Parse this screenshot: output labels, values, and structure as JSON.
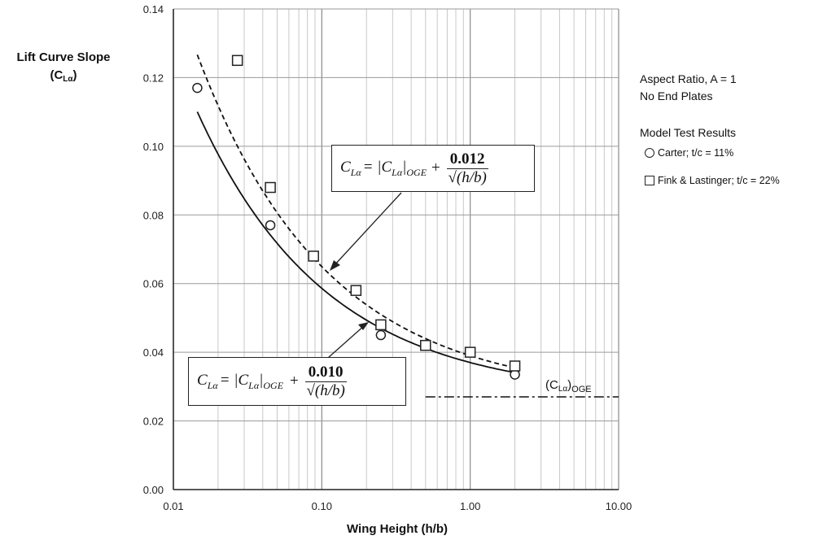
{
  "chart_data": {
    "type": "scatter",
    "x_scale": "log",
    "xlim": [
      0.01,
      10.0
    ],
    "ylim": [
      0.0,
      0.14
    ],
    "xlabel": "Wing Height (h/b)",
    "ylabel_line1": "Lift Curve Slope",
    "ylabel_line2": "(C",
    "ylabel_sub": "Lα",
    "ylabel_close": ")",
    "x_ticks": [
      "0.01",
      "0.10",
      "1.00",
      "10.00"
    ],
    "x_tick_values": [
      0.01,
      0.1,
      1.0,
      10.0
    ],
    "y_ticks": [
      "0.00",
      "0.02",
      "0.04",
      "0.06",
      "0.08",
      "0.10",
      "0.12",
      "0.14"
    ],
    "y_tick_values": [
      0.0,
      0.02,
      0.04,
      0.06,
      0.08,
      0.1,
      0.12,
      0.14
    ],
    "grid": true,
    "series": [
      {
        "name": "Carter; t/c = 11%",
        "marker": "circle",
        "x": [
          0.0145,
          0.045,
          0.25,
          2.0
        ],
        "y": [
          0.117,
          0.077,
          0.045,
          0.0335
        ]
      },
      {
        "name": "Fink & Lastinger;  t/c = 22%",
        "marker": "square",
        "x": [
          0.027,
          0.045,
          0.088,
          0.17,
          0.25,
          0.5,
          1.0,
          2.0
        ],
        "y": [
          0.125,
          0.088,
          0.068,
          0.058,
          0.048,
          0.042,
          0.04,
          0.036
        ]
      }
    ],
    "curves": [
      {
        "style": "dashed",
        "oge": 0.027,
        "coef": 0.012,
        "x_range": [
          0.0145,
          2.0
        ]
      },
      {
        "style": "solid",
        "oge": 0.027,
        "coef": 0.01,
        "x_range": [
          0.0145,
          2.0
        ]
      }
    ],
    "oge_line": {
      "value": 0.027,
      "x_range": [
        0.5,
        10.0
      ],
      "style": "dash-dot",
      "label": "(C",
      "label_sub": "Lα",
      "label_close": ")",
      "label_post": "OGE"
    }
  },
  "annotations": {
    "aspect_ratio": "Aspect Ratio, A = 1",
    "end_plates": "No End Plates",
    "legend_title": "Model Test Results"
  },
  "formula_upper": {
    "lhs": "C",
    "lhs_sub": "Lα",
    "eq": " = |C",
    "mid_sub": "Lα",
    "mid_close": "|",
    "oge_sub": "OGE",
    "plus": "+",
    "numerator": "0.012",
    "denominator": "√(h/b)"
  },
  "formula_lower": {
    "lhs": "C",
    "lhs_sub": "Lα",
    "eq": " = |C",
    "mid_sub": "Lα",
    "mid_close": "|",
    "oge_sub": "OGE",
    "plus": "+",
    "numerator": "0.010",
    "denominator": "√(h/b)"
  }
}
